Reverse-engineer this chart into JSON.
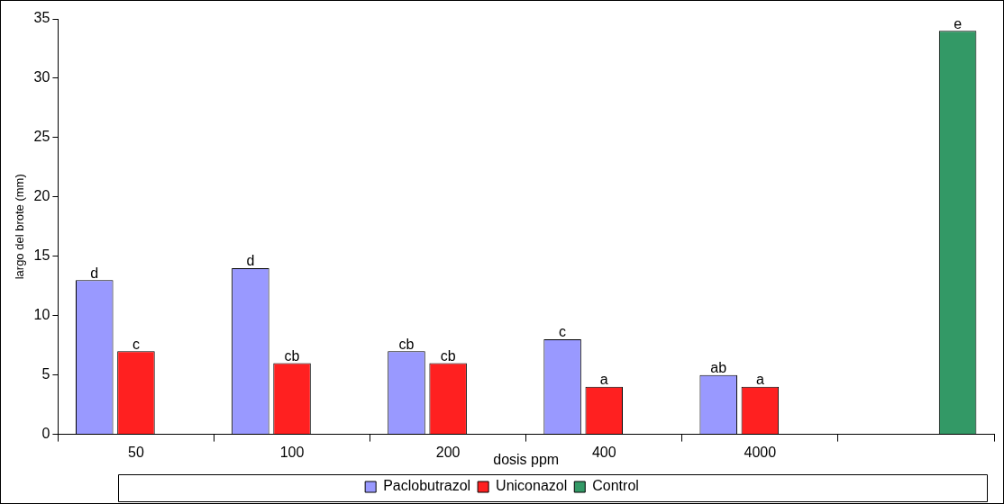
{
  "chart_data": {
    "type": "bar",
    "xlabel": "dosis ppm",
    "ylabel": "largo del brote (mm)",
    "categories": [
      "50",
      "100",
      "200",
      "400",
      "4000",
      null
    ],
    "series": [
      {
        "name": "Paclobutrazol",
        "color": "#9999ff",
        "values": [
          13,
          14,
          7,
          8,
          5,
          null
        ],
        "value_labels": [
          "d",
          "d",
          "cb",
          "c",
          "ab",
          null
        ]
      },
      {
        "name": "Uniconazol",
        "color": "#ff2020",
        "values": [
          7,
          6,
          6,
          4,
          4,
          null
        ],
        "value_labels": [
          "c",
          "cb",
          "cb",
          "a",
          "a",
          null
        ]
      },
      {
        "name": "Control",
        "color": "#339966",
        "values": [
          null,
          null,
          null,
          null,
          null,
          34
        ],
        "value_labels": [
          null,
          null,
          null,
          null,
          null,
          "e"
        ]
      }
    ],
    "ylim": [
      0,
      35
    ],
    "yticks": [
      0,
      5,
      10,
      15,
      20,
      25,
      30,
      35
    ],
    "grid": false,
    "legend": "bottom"
  }
}
